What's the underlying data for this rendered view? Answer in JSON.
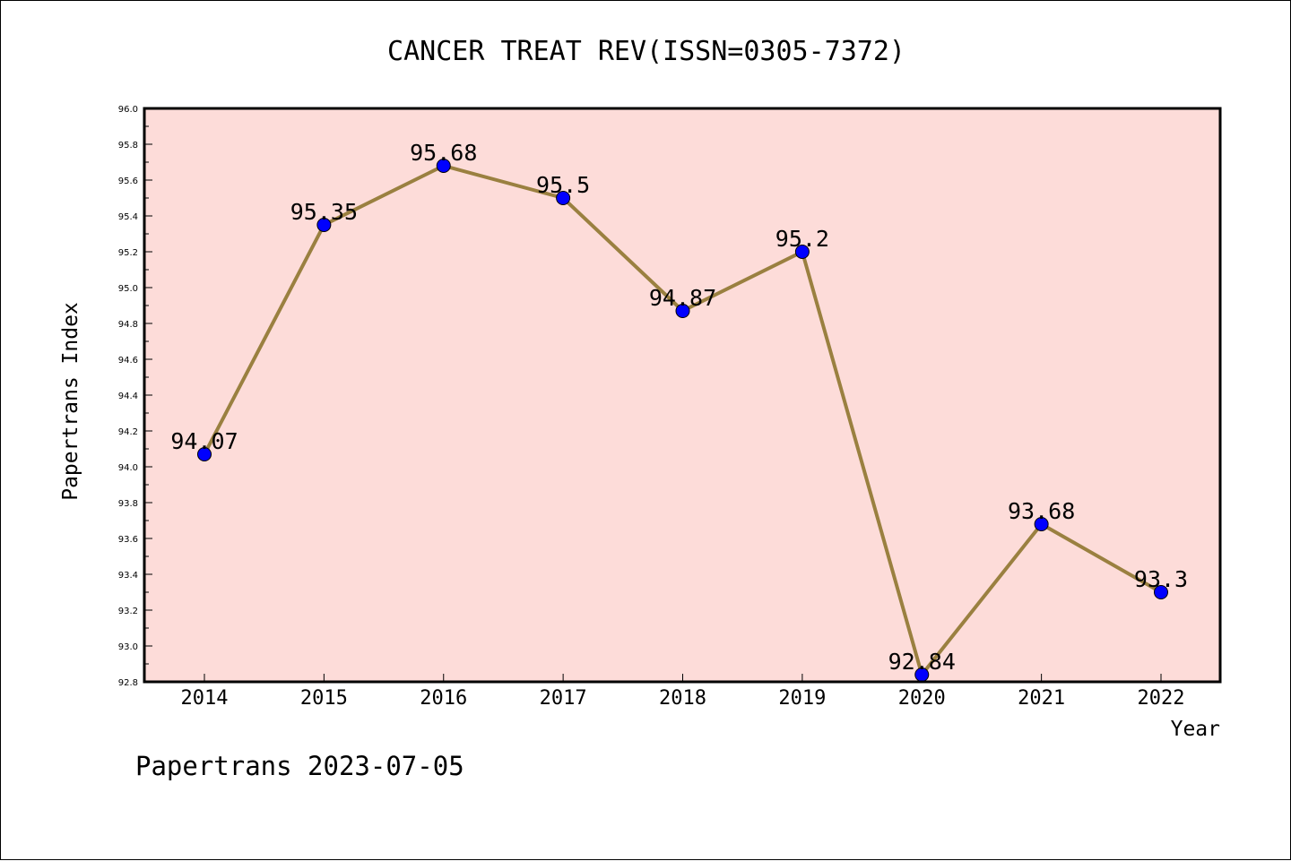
{
  "chart_data": {
    "type": "line",
    "title": "CANCER TREAT REV(ISSN=0305-7372)",
    "xlabel": "Year",
    "ylabel": "Papertrans Index",
    "categories": [
      "2014",
      "2015",
      "2016",
      "2017",
      "2018",
      "2019",
      "2020",
      "2021",
      "2022"
    ],
    "values": [
      94.07,
      95.35,
      95.68,
      95.5,
      94.87,
      95.2,
      92.84,
      93.68,
      93.3
    ],
    "data_labels": [
      "94.07",
      "95.35",
      "95.68",
      "95.5",
      "94.87",
      "95.2",
      "92.84",
      "93.68",
      "93.3"
    ],
    "ylim": [
      92.8,
      96.0
    ],
    "yticks": [
      "92.8",
      "93.0",
      "93.2",
      "93.4",
      "93.6",
      "93.8",
      "94.0",
      "94.2",
      "94.4",
      "94.6",
      "94.8",
      "95.0",
      "95.2",
      "95.4",
      "95.6",
      "95.8",
      "96.0"
    ],
    "grid": false,
    "legend": "none",
    "colors": {
      "plot_background": "#fddcd9",
      "line": "#9a8040",
      "marker": "#0000ff"
    },
    "footer": "Papertrans 2023-07-05"
  }
}
